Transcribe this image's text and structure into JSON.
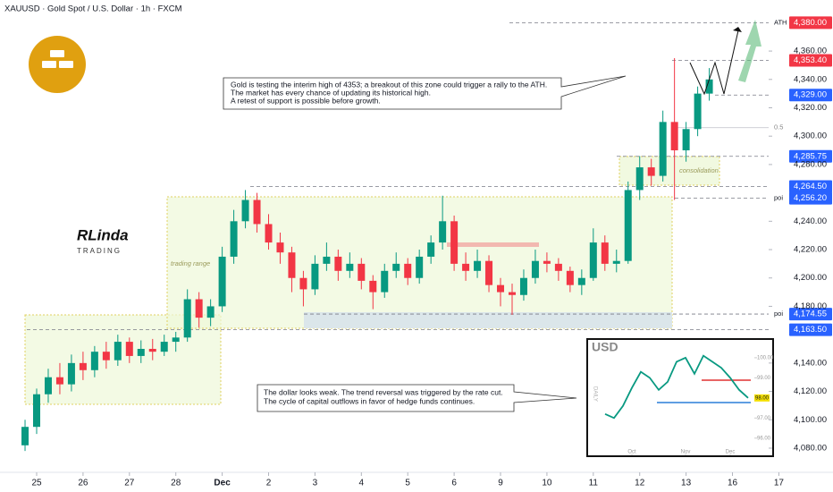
{
  "chart_data": [
    {
      "type": "candlestick",
      "title": "XAUUSD · Gold Spot / U.S. Dollar · 1h · FXCM",
      "x": [
        -0.25,
        0,
        0.25,
        0.5,
        0.75,
        1,
        1.25,
        1.5,
        1.75,
        2,
        2.25,
        2.5,
        2.75,
        3,
        3.25,
        3.5,
        3.75,
        4,
        4.25,
        4.5,
        4.75,
        5,
        5.25,
        5.5,
        5.75,
        6,
        6.25,
        6.5,
        6.75,
        7,
        7.25,
        7.5,
        7.75,
        8,
        8.25,
        8.5,
        8.75,
        9,
        9.25,
        9.5,
        9.75,
        10,
        10.25,
        10.5,
        10.75,
        11,
        11.25,
        11.5,
        11.75,
        12,
        12.25,
        12.5,
        12.75,
        13,
        13.25,
        13.5,
        13.75,
        14,
        14.25,
        14.5
      ],
      "candles": [
        [
          4082,
          4100,
          4078,
          4095
        ],
        [
          4095,
          4122,
          4090,
          4118
        ],
        [
          4118,
          4136,
          4112,
          4130
        ],
        [
          4130,
          4140,
          4118,
          4125
        ],
        [
          4125,
          4146,
          4120,
          4140
        ],
        [
          4140,
          4148,
          4128,
          4135
        ],
        [
          4135,
          4152,
          4130,
          4148
        ],
        [
          4148,
          4155,
          4136,
          4142
        ],
        [
          4142,
          4160,
          4138,
          4155
        ],
        [
          4155,
          4158,
          4140,
          4145
        ],
        [
          4145,
          4156,
          4140,
          4150
        ],
        [
          4150,
          4157,
          4142,
          4148
        ],
        [
          4148,
          4160,
          4145,
          4155
        ],
        [
          4155,
          4162,
          4148,
          4158
        ],
        [
          4158,
          4192,
          4155,
          4185
        ],
        [
          4185,
          4190,
          4165,
          4172
        ],
        [
          4172,
          4185,
          4166,
          4180
        ],
        [
          4180,
          4222,
          4176,
          4215
        ],
        [
          4215,
          4248,
          4210,
          4240
        ],
        [
          4240,
          4262,
          4235,
          4255
        ],
        [
          4255,
          4260,
          4232,
          4238
        ],
        [
          4238,
          4245,
          4220,
          4225
        ],
        [
          4225,
          4232,
          4210,
          4218
        ],
        [
          4218,
          4222,
          4190,
          4200
        ],
        [
          4200,
          4205,
          4180,
          4192
        ],
        [
          4192,
          4216,
          4188,
          4210
        ],
        [
          4210,
          4225,
          4205,
          4215
        ],
        [
          4215,
          4220,
          4198,
          4205
        ],
        [
          4205,
          4218,
          4200,
          4210
        ],
        [
          4210,
          4214,
          4192,
          4198
        ],
        [
          4198,
          4202,
          4178,
          4190
        ],
        [
          4190,
          4210,
          4186,
          4205
        ],
        [
          4205,
          4218,
          4200,
          4210
        ],
        [
          4210,
          4214,
          4195,
          4200
        ],
        [
          4200,
          4220,
          4196,
          4215
        ],
        [
          4215,
          4230,
          4210,
          4225
        ],
        [
          4225,
          4258,
          4220,
          4240
        ],
        [
          4240,
          4244,
          4205,
          4210
        ],
        [
          4210,
          4218,
          4198,
          4205
        ],
        [
          4205,
          4220,
          4200,
          4212
        ],
        [
          4212,
          4216,
          4190,
          4195
        ],
        [
          4195,
          4200,
          4180,
          4190
        ],
        [
          4190,
          4196,
          4174,
          4188
        ],
        [
          4188,
          4206,
          4184,
          4200
        ],
        [
          4200,
          4220,
          4196,
          4212
        ],
        [
          4212,
          4218,
          4204,
          4210
        ],
        [
          4210,
          4214,
          4198,
          4205
        ],
        [
          4205,
          4208,
          4190,
          4195
        ],
        [
          4195,
          4206,
          4188,
          4200
        ],
        [
          4200,
          4235,
          4198,
          4225
        ],
        [
          4225,
          4230,
          4205,
          4210
        ],
        [
          4210,
          4220,
          4204,
          4212
        ],
        [
          4212,
          4268,
          4210,
          4262
        ],
        [
          4262,
          4286,
          4255,
          4278
        ],
        [
          4278,
          4284,
          4265,
          4272
        ],
        [
          4272,
          4318,
          4268,
          4310
        ],
        [
          4310,
          4355,
          4255,
          4290
        ],
        [
          4290,
          4310,
          4282,
          4305
        ],
        [
          4305,
          4335,
          4300,
          4330
        ],
        [
          4330,
          4348,
          4325,
          4340
        ]
      ],
      "up_color": "#089981",
      "down_color": "#f23645",
      "xlim": [
        -0.79,
        15.78
      ],
      "xticks": [
        {
          "value": 0,
          "label": "25"
        },
        {
          "value": 1,
          "label": "26"
        },
        {
          "value": 2,
          "label": "27"
        },
        {
          "value": 3,
          "label": "28"
        },
        {
          "value": 4,
          "label": "Dec"
        },
        {
          "value": 5,
          "label": "2"
        },
        {
          "value": 6,
          "label": "3"
        },
        {
          "value": 7,
          "label": "4"
        },
        {
          "value": 8,
          "label": "5"
        },
        {
          "value": 9,
          "label": "6"
        },
        {
          "value": 10,
          "label": "9"
        },
        {
          "value": 11,
          "label": "10"
        },
        {
          "value": 12,
          "label": "11"
        },
        {
          "value": 13,
          "label": "12"
        },
        {
          "value": 14,
          "label": "13"
        },
        {
          "value": 15,
          "label": "16"
        },
        {
          "value": 16,
          "label": "17"
        }
      ],
      "ylim": [
        4068,
        4396
      ],
      "yticks": [
        {
          "value": 4080,
          "label": "4,080.00"
        },
        {
          "value": 4100,
          "label": "4,100.00"
        },
        {
          "value": 4120,
          "label": "4,120.00"
        },
        {
          "value": 4140,
          "label": "4,140.00"
        },
        {
          "value": 4180,
          "label": "4,180.00"
        },
        {
          "value": 4200,
          "label": "4,200.00"
        },
        {
          "value": 4220,
          "label": "4,220.00"
        },
        {
          "value": 4240,
          "label": "4,240.00"
        },
        {
          "value": 4280,
          "label": "4,280.00"
        },
        {
          "value": 4300,
          "label": "4,300.00"
        },
        {
          "value": 4320,
          "label": "4,320.00"
        },
        {
          "value": 4340,
          "label": "4,340.00"
        },
        {
          "value": 4360,
          "label": "4,360.00"
        }
      ],
      "grid": false,
      "levels": [
        {
          "value": 4380,
          "label": "4,380.00",
          "color": "#f23645",
          "note": "ATH"
        },
        {
          "value": 4353.4,
          "label": "4,353.40",
          "color": "#f23645"
        },
        {
          "value": 4329,
          "label": "4,329.00",
          "color": "#2962ff"
        },
        {
          "value": 4285.75,
          "label": "4,285.75",
          "color": "#2962ff"
        },
        {
          "value": 4264.5,
          "label": "4,264.50",
          "color": "#2962ff"
        },
        {
          "value": 4256.2,
          "label": "4,256.20",
          "color": "#2962ff",
          "note": "poi"
        },
        {
          "value": 4174.55,
          "label": "4,174.55",
          "color": "#2962ff",
          "note": "poi"
        },
        {
          "value": 4163.5,
          "label": "4,163.50",
          "color": "#2962ff"
        }
      ],
      "fib": {
        "value": 4306,
        "label": "0.5"
      },
      "zone_labels": [
        "trading range",
        "consolidation"
      ],
      "callouts": [
        [
          "Gold is testing the interim high of 4353; a breakout of this zone could trigger a rally to the ATH.",
          "The market has every chance of updating its historical high.",
          "A retest of support is possible before growth."
        ],
        [
          "The dollar looks weak. The trend reversal was triggered by the rate cut.",
          "The cycle of capital outflows in favor of hedge funds continues."
        ]
      ],
      "watermark": [
        "RLinda",
        "TRADING"
      ]
    },
    {
      "type": "line",
      "title": "USD",
      "subtitle": "DAILY",
      "x": [
        0,
        1,
        2,
        3,
        4,
        5,
        6,
        7,
        8,
        9,
        10,
        11,
        12,
        13,
        14,
        15,
        16
      ],
      "values": [
        97.2,
        97.0,
        97.6,
        98.5,
        99.3,
        99.0,
        98.4,
        98.8,
        99.8,
        100.0,
        99.2,
        100.1,
        99.8,
        99.5,
        99.0,
        98.4,
        98.0
      ],
      "color": "#089981",
      "xlim": [
        -2,
        17
      ],
      "xticks": [
        {
          "value": 3,
          "label": "Oct"
        },
        {
          "value": 9,
          "label": "Nov"
        },
        {
          "value": 14,
          "label": "Dec"
        }
      ],
      "ylim": [
        95.1,
        100.93
      ],
      "yticks": [
        {
          "value": 96,
          "label": "96.00"
        },
        {
          "value": 97,
          "label": "97.00"
        },
        {
          "value": 99,
          "label": "99.00"
        },
        {
          "value": 100,
          "label": "100.00"
        }
      ],
      "price_tag": {
        "value": 98,
        "label": "98.00"
      }
    }
  ]
}
